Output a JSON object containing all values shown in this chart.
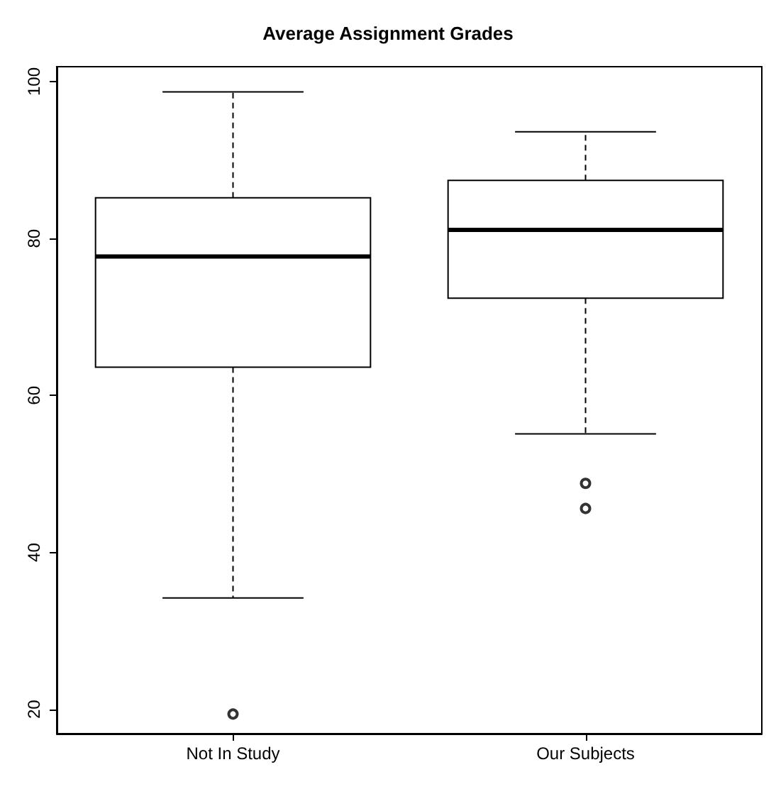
{
  "chart_data": {
    "type": "box",
    "title": "Average Assignment Grades",
    "categories": [
      "Not In Study",
      "Our Subjects"
    ],
    "boxes": [
      {
        "low": 34.2,
        "q1": 63.6,
        "median": 77.7,
        "q3": 85.2,
        "high": 98.7,
        "outliers": [
          19.4
        ]
      },
      {
        "low": 55.1,
        "q1": 72.4,
        "median": 81.1,
        "q3": 87.4,
        "high": 93.6,
        "outliers": [
          48.8,
          45.6
        ]
      }
    ],
    "ylim": [
      16.9,
      101.9
    ],
    "yticks": [
      20,
      40,
      60,
      80,
      100
    ]
  }
}
